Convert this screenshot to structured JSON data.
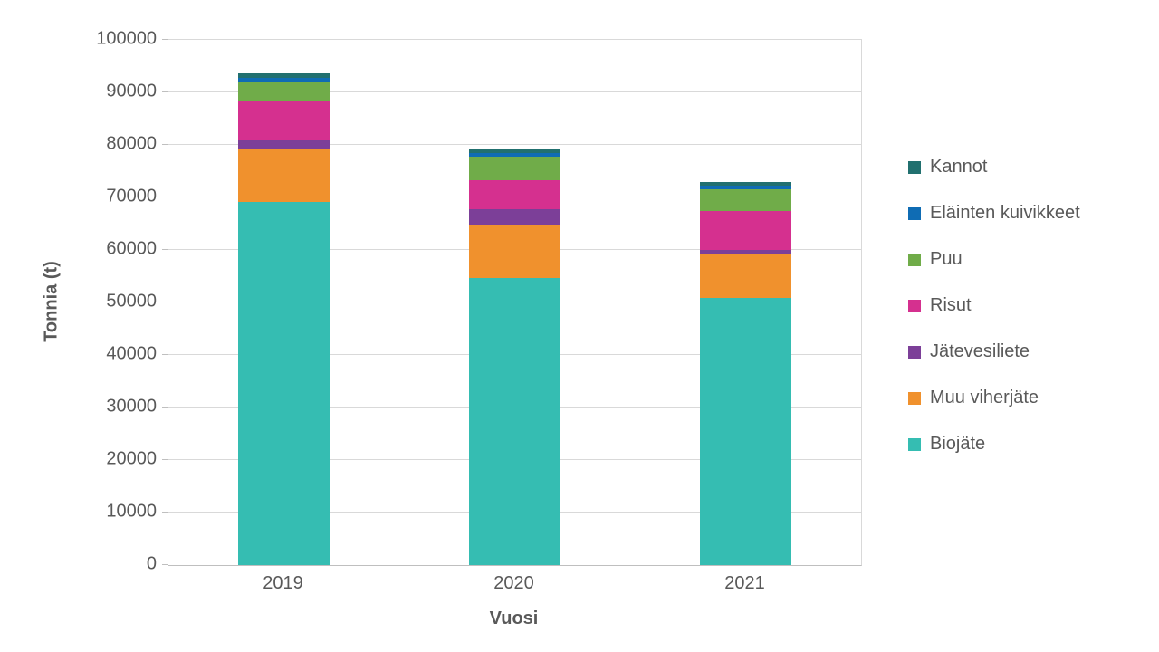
{
  "page": {
    "background": "#FFFFFF"
  },
  "colors": {
    "axis_text": "#595959",
    "gridline": "#D9D9D9",
    "axis_line": "#BFBFBF"
  },
  "chart_data": {
    "type": "bar",
    "variant": "stacked-vertical",
    "title": "",
    "xlabel": "Vuosi",
    "ylabel": "Tonnia (t)",
    "categories": [
      "2019",
      "2020",
      "2021"
    ],
    "series": [
      {
        "name": "Biojäte",
        "color": "#35BDB2",
        "values": [
          69200,
          54700,
          50800
        ]
      },
      {
        "name": "Muu viherjäte",
        "color": "#F0912D",
        "values": [
          9900,
          9900,
          8300
        ]
      },
      {
        "name": "Jätevesiliete",
        "color": "#7C3F98",
        "values": [
          1850,
          3150,
          900
        ]
      },
      {
        "name": "Risut",
        "color": "#D5308F",
        "values": [
          7450,
          5550,
          7350
        ]
      },
      {
        "name": "Puu",
        "color": "#70AC49",
        "values": [
          3700,
          4500,
          4150
        ]
      },
      {
        "name": "Eläinten kuivikkeet",
        "color": "#0F6CB4",
        "values": [
          700,
          600,
          700
        ]
      },
      {
        "name": "Kannot",
        "color": "#21706F",
        "values": [
          800,
          700,
          700
        ]
      }
    ],
    "stack_order": "first-series-at-bottom",
    "legend_position": "right",
    "legend_order_top_to_bottom": [
      "Kannot",
      "Eläinten kuivikkeet",
      "Puu",
      "Risut",
      "Jätevesiliete",
      "Muu viherjäte",
      "Biojäte"
    ],
    "ylim": [
      0,
      100000
    ],
    "ytick_step": 10000,
    "ytick_labels": [
      "0",
      "10000",
      "20000",
      "30000",
      "40000",
      "50000",
      "60000",
      "70000",
      "80000",
      "90000",
      "100000"
    ],
    "grid": true
  }
}
